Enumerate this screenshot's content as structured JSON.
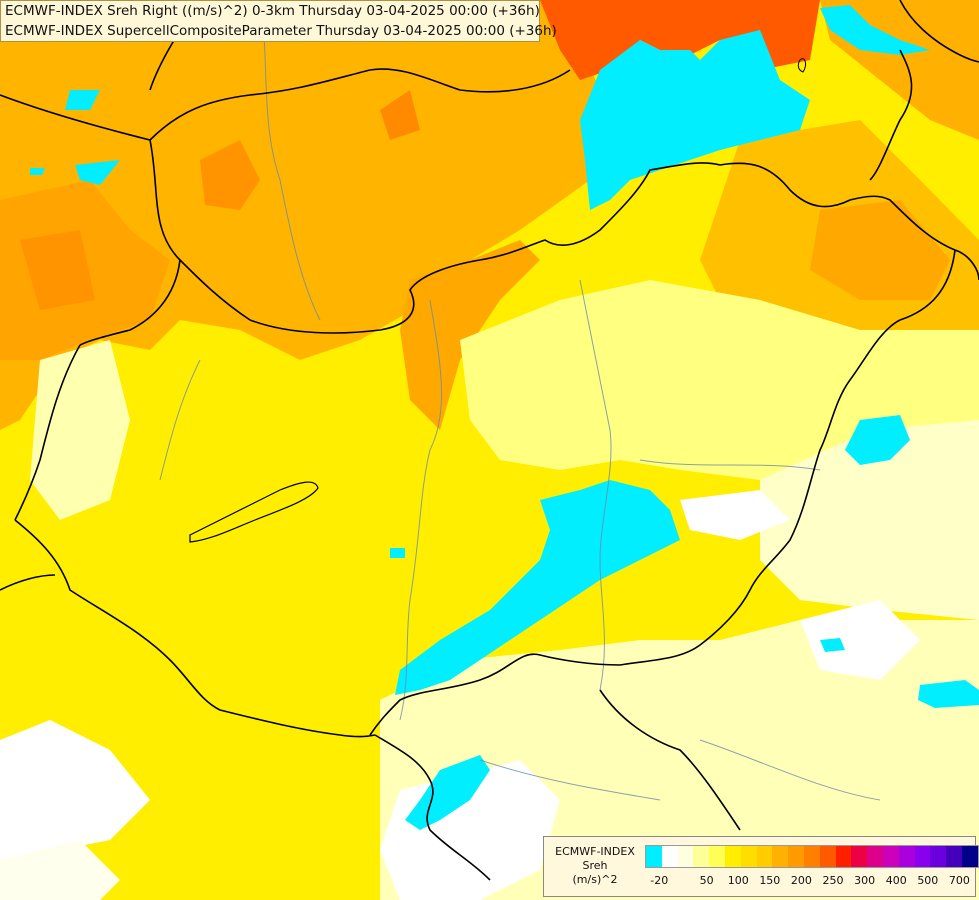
{
  "titles": {
    "line1": "ECMWF-INDEX Sreh Right ((m/s)^2) 0-3km Thursday 03-04-2025 00:00 (+36h)",
    "line2": "ECMWF-INDEX SupercellCompositeParameter Thursday 03-04-2025 00:00 (+36h)"
  },
  "legend": {
    "model": "ECMWF-INDEX",
    "variable": "Sreh",
    "unit": "(m/s)^2",
    "colors": [
      "#00eeff",
      "#ffffff",
      "#ffffe0",
      "#ffff99",
      "#ffff55",
      "#ffee00",
      "#ffdd00",
      "#ffcc00",
      "#ffb000",
      "#ff9a00",
      "#ff8000",
      "#ff5a00",
      "#ff2000",
      "#ee0044",
      "#dd0088",
      "#cc00bb",
      "#aa00dd",
      "#8800ee",
      "#6a00dd",
      "#4400bb",
      "#000088"
    ],
    "ticks": [
      {
        "label": "-20",
        "index": 0
      },
      {
        "label": "50",
        "index": 3
      },
      {
        "label": "100",
        "index": 5
      },
      {
        "label": "150",
        "index": 7
      },
      {
        "label": "200",
        "index": 9
      },
      {
        "label": "250",
        "index": 11
      },
      {
        "label": "300",
        "index": 13
      },
      {
        "label": "400",
        "index": 15
      },
      {
        "label": "500",
        "index": 17
      },
      {
        "label": "700",
        "index": 19
      }
    ]
  }
}
